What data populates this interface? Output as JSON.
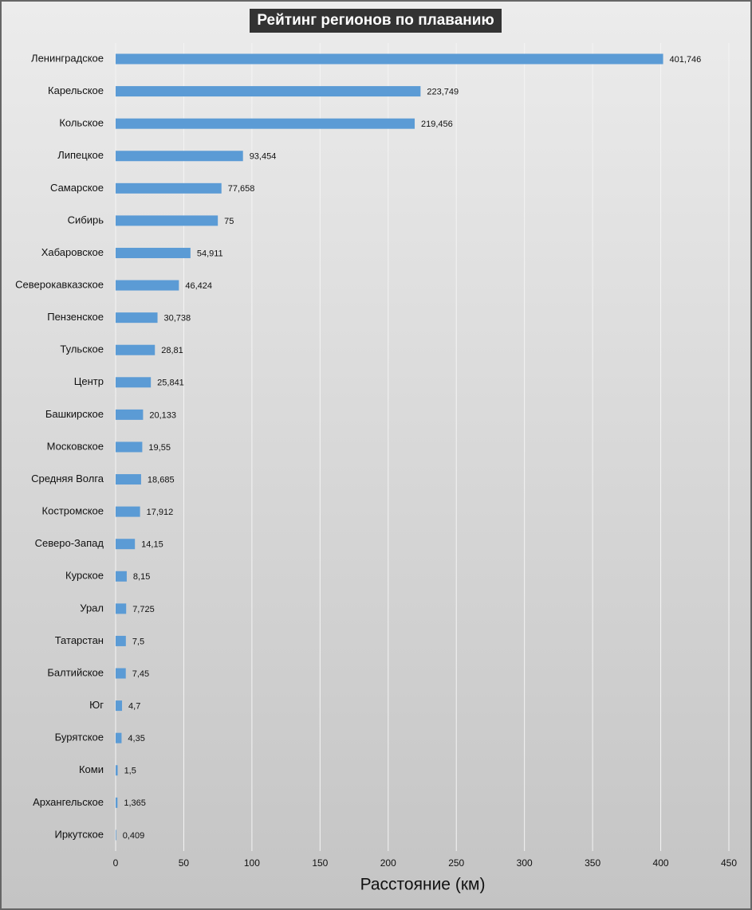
{
  "chart_data": {
    "type": "hbar",
    "title": "Рейтинг регионов по плаванию",
    "x_label": "Расстояние (км)",
    "categories": [
      "Ленинградское",
      "Карельское",
      "Кольское",
      "Липецкое",
      "Самарское",
      "Сибирь",
      "Хабаровское",
      "Северокавказское",
      "Пензенское",
      "Тульское",
      "Центр",
      "Башкирское",
      "Московское",
      "Средняя Волга",
      "Костромское",
      "Северо-Запад",
      "Курское",
      "Урал",
      "Татарстан",
      "Балтийское",
      "Юг",
      "Бурятское",
      "Коми",
      "Архангельское",
      "Иркутское"
    ],
    "values": [
      401.746,
      223.749,
      219.456,
      93.454,
      77.658,
      75,
      54.911,
      46.424,
      30.738,
      28.81,
      25.841,
      20.133,
      19.55,
      18.685,
      17.912,
      14.15,
      8.15,
      7.725,
      7.5,
      7.45,
      4.7,
      4.35,
      1.5,
      1.365,
      0.409
    ],
    "value_labels": [
      "401,746",
      "223,749",
      "219,456",
      "93,454",
      "77,658",
      "75",
      "54,911",
      "46,424",
      "30,738",
      "28,81",
      "25,841",
      "20,133",
      "19,55",
      "18,685",
      "17,912",
      "14,15",
      "8,15",
      "7,725",
      "7,5",
      "7,45",
      "4,7",
      "4,35",
      "1,5",
      "1,365",
      "0,409"
    ],
    "color": "#5b9bd5",
    "xlim": [
      0,
      450
    ],
    "xticks": [
      0,
      50,
      100,
      150,
      200,
      250,
      300,
      350,
      400,
      450
    ],
    "grid": true
  }
}
